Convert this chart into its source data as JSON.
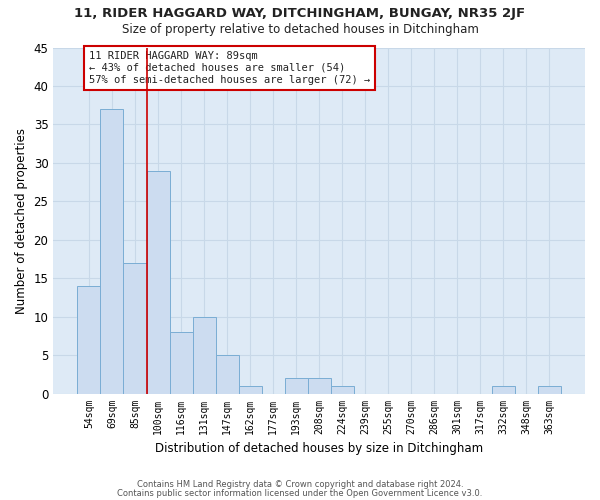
{
  "title": "11, RIDER HAGGARD WAY, DITCHINGHAM, BUNGAY, NR35 2JF",
  "subtitle": "Size of property relative to detached houses in Ditchingham",
  "xlabel": "Distribution of detached houses by size in Ditchingham",
  "ylabel": "Number of detached properties",
  "bar_color": "#ccdcf0",
  "bar_edge_color": "#7aadd4",
  "grid_color": "#c8d8e8",
  "background_color": "#deeaf6",
  "annotation_box_color": "#ffffff",
  "annotation_border_color": "#cc0000",
  "red_line_color": "#cc0000",
  "categories": [
    "54sqm",
    "69sqm",
    "85sqm",
    "100sqm",
    "116sqm",
    "131sqm",
    "147sqm",
    "162sqm",
    "177sqm",
    "193sqm",
    "208sqm",
    "224sqm",
    "239sqm",
    "255sqm",
    "270sqm",
    "286sqm",
    "301sqm",
    "317sqm",
    "332sqm",
    "348sqm",
    "363sqm"
  ],
  "values": [
    14,
    37,
    17,
    29,
    8,
    10,
    5,
    1,
    0,
    2,
    2,
    1,
    0,
    0,
    0,
    0,
    0,
    0,
    1,
    0,
    1
  ],
  "ylim": [
    0,
    45
  ],
  "yticks": [
    0,
    5,
    10,
    15,
    20,
    25,
    30,
    35,
    40,
    45
  ],
  "red_line_x": 2.5,
  "annotation_text_line1": "11 RIDER HAGGARD WAY: 89sqm",
  "annotation_text_line2": "← 43% of detached houses are smaller (54)",
  "annotation_text_line3": "57% of semi-detached houses are larger (72) →",
  "footnote1": "Contains HM Land Registry data © Crown copyright and database right 2024.",
  "footnote2": "Contains public sector information licensed under the Open Government Licence v3.0."
}
